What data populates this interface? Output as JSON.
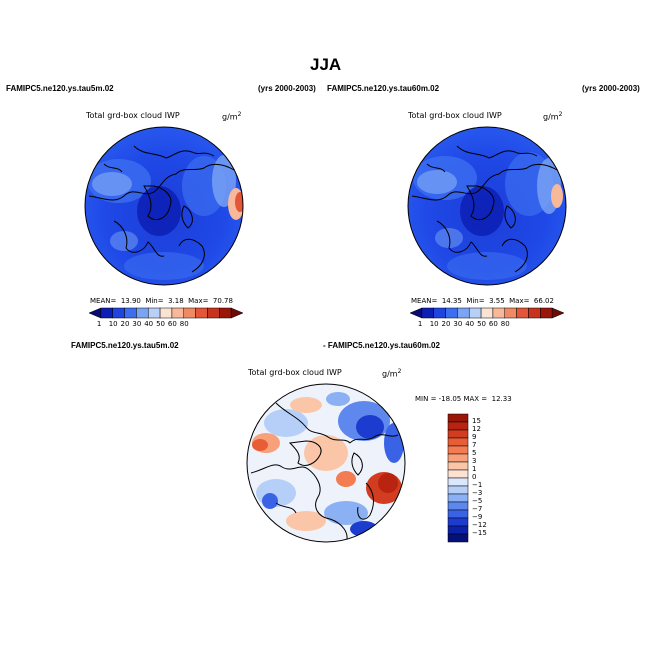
{
  "main_title": "JJA",
  "chart_data": [
    {
      "type": "heatmap",
      "projection": "north-polar-stereographic",
      "case_label": "FAMIPC5.ne120.ys.tau5m.02",
      "years": "(yrs 2000-2003)",
      "title": "Total grd-box cloud IWP",
      "units": "g/m",
      "units_exp": "2",
      "stats": {
        "mean_label": "MEAN=",
        "mean": "13.90",
        "min_label": "Min=",
        "min": "3.18",
        "max_label": "Max=",
        "max": "70.78"
      },
      "colorbar": {
        "levels": [
          "1",
          "10",
          "20",
          "30",
          "40",
          "50",
          "60",
          "80"
        ],
        "colors": [
          "#0a0a78",
          "#0c1eb4",
          "#1f44e0",
          "#3c6ef0",
          "#7aa5f5",
          "#b8d0f8",
          "#fbe3d4",
          "#f8b89a",
          "#f08a64",
          "#e3563a",
          "#c8321e",
          "#9a1608",
          "#6e0a04"
        ]
      }
    },
    {
      "type": "heatmap",
      "projection": "north-polar-stereographic",
      "case_label": "FAMIPC5.ne120.ys.tau60m.02",
      "years": "(yrs 2000-2003)",
      "title": "Total grd-box cloud IWP",
      "units": "g/m",
      "units_exp": "2",
      "stats": {
        "mean_label": "MEAN=",
        "mean": "14.35",
        "min_label": "Min=",
        "min": "3.55",
        "max_label": "Max=",
        "max": "66.02"
      },
      "colorbar": {
        "levels": [
          "1",
          "10",
          "20",
          "30",
          "40",
          "50",
          "60",
          "80"
        ],
        "colors": [
          "#0a0a78",
          "#0c1eb4",
          "#1f44e0",
          "#3c6ef0",
          "#7aa5f5",
          "#b8d0f8",
          "#fbe3d4",
          "#f8b89a",
          "#f08a64",
          "#e3563a",
          "#c8321e",
          "#9a1608",
          "#6e0a04"
        ]
      }
    },
    {
      "type": "heatmap",
      "projection": "north-polar-stereographic",
      "case_label_a": "FAMIPC5.ne120.ys.tau5m.02",
      "case_label_b": "- FAMIPC5.ne120.ys.tau60m.02",
      "title": "Total grd-box cloud IWP",
      "units": "g/m",
      "units_exp": "2",
      "stats_text": "MIN = -18.05 MAX =  12.33",
      "colorbar": {
        "levels": [
          "15",
          "12",
          "9",
          "7",
          "5",
          "3",
          "1",
          "0",
          "−1",
          "−3",
          "−5",
          "−7",
          "−9",
          "−12",
          "−15"
        ],
        "colors": [
          "#9a1608",
          "#b82410",
          "#d23c20",
          "#e85c36",
          "#f47c52",
          "#f8a07a",
          "#fbc6a8",
          "#fde2d2",
          "#dbe8fb",
          "#b6cff8",
          "#8cb0f4",
          "#5e88ee",
          "#3a62e4",
          "#1c3cd0",
          "#0c20a8",
          "#06107a"
        ]
      }
    }
  ]
}
